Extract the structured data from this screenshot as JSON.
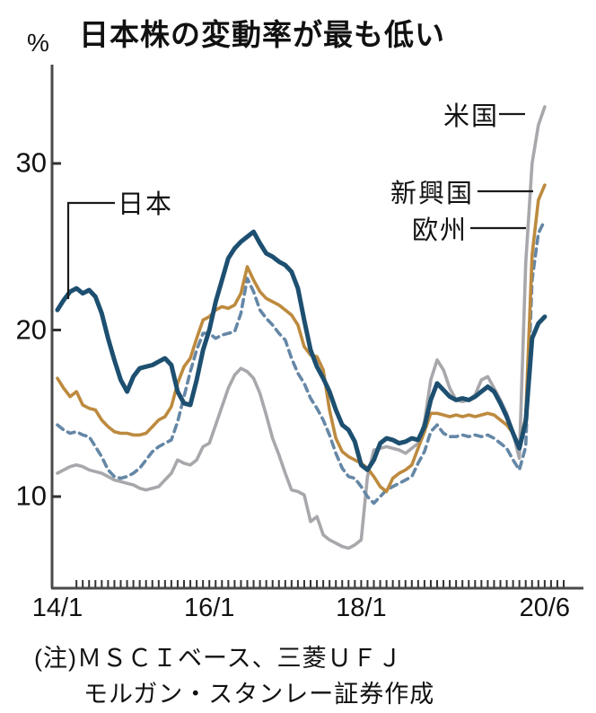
{
  "title": "日本株の変動率が最も低い",
  "y_axis": {
    "unit": "%",
    "tick_labels": [
      "10",
      "20",
      "30"
    ]
  },
  "x_axis": {
    "tick_labels": [
      "14/1",
      "16/1",
      "18/1",
      "20/6"
    ]
  },
  "series_labels": {
    "japan": "日本",
    "us": "米国",
    "em": "新興国",
    "europe": "欧州"
  },
  "note": {
    "line1": "(注)ＭＳＣＩベース、三菱ＵＦＪ",
    "line2": "モルガン・スタンレー証券作成"
  },
  "colors": {
    "japan": "#1d4f70",
    "us": "#a8a8ac",
    "em": "#bd8a3e",
    "europe": "#6587a6",
    "axis": "#4a4a4a",
    "tick": "#333333",
    "annotation_line": "#1a1a1a",
    "text": "#111111",
    "background": "#ffffff"
  },
  "chart_data": {
    "type": "line",
    "title": "日本株の変動率が最も低い",
    "ylabel": "%",
    "ylim": [
      4.5,
      35.9
    ],
    "y_ticks": [
      10,
      20,
      30
    ],
    "x_frequency": "monthly",
    "x_start": "2014-01",
    "x_end": "2020-06",
    "x_tick_labels": [
      "14/1",
      "16/1",
      "18/1",
      "20/6"
    ],
    "x_tick_months": [
      0,
      24,
      48,
      77
    ],
    "grid": false,
    "legend": "inline-annotations",
    "series": [
      {
        "name": "日本",
        "color": "#1d4f70",
        "style": "solid",
        "width": 5,
        "values": [
          21.2,
          21.8,
          22.3,
          22.5,
          22.2,
          22.4,
          22.0,
          21.0,
          19.5,
          18.2,
          17.0,
          16.3,
          17.2,
          17.7,
          17.8,
          17.9,
          18.1,
          18.3,
          17.9,
          16.3,
          15.6,
          15.5,
          17.0,
          18.8,
          20.0,
          21.7,
          23.0,
          24.3,
          24.9,
          25.3,
          25.6,
          25.9,
          25.2,
          24.6,
          24.4,
          24.1,
          23.9,
          23.5,
          22.5,
          20.6,
          18.8,
          17.8,
          17.1,
          16.3,
          15.2,
          14.3,
          14.0,
          13.3,
          11.9,
          11.6,
          12.2,
          13.2,
          13.5,
          13.4,
          13.2,
          13.3,
          13.5,
          13.4,
          14.2,
          15.8,
          16.8,
          16.4,
          16.0,
          15.8,
          15.9,
          15.8,
          16.0,
          16.3,
          16.6,
          16.3,
          15.6,
          14.8,
          13.8,
          12.9,
          14.5,
          19.5,
          20.4,
          20.8
        ]
      },
      {
        "name": "米国",
        "color": "#a8a8ac",
        "style": "solid",
        "width": 3.6,
        "values": [
          11.4,
          11.6,
          11.8,
          11.9,
          11.8,
          11.6,
          11.5,
          11.4,
          11.2,
          11.0,
          10.9,
          10.8,
          10.7,
          10.5,
          10.4,
          10.5,
          10.6,
          11.0,
          11.4,
          12.2,
          12.0,
          11.9,
          12.2,
          13.0,
          13.2,
          14.3,
          15.4,
          16.5,
          17.3,
          17.7,
          17.5,
          17.1,
          16.2,
          14.9,
          13.5,
          12.5,
          11.4,
          10.4,
          10.3,
          10.1,
          8.5,
          8.8,
          7.7,
          7.4,
          7.2,
          7.0,
          6.9,
          7.1,
          7.4,
          11.2,
          12.8,
          12.9,
          13.0,
          12.9,
          12.8,
          12.6,
          12.9,
          13.2,
          14.5,
          17.0,
          18.2,
          17.6,
          16.5,
          15.8,
          15.7,
          15.8,
          16.1,
          17.0,
          17.2,
          16.5,
          15.8,
          15.0,
          13.8,
          12.3,
          24.0,
          30.0,
          32.3,
          33.4
        ]
      },
      {
        "name": "新興国",
        "color": "#bd8a3e",
        "style": "solid",
        "width": 3.6,
        "values": [
          17.1,
          16.5,
          16.0,
          16.3,
          15.5,
          15.3,
          15.2,
          14.6,
          14.2,
          13.9,
          13.8,
          13.8,
          13.7,
          13.7,
          13.8,
          14.2,
          14.6,
          14.8,
          15.4,
          16.8,
          17.8,
          18.3,
          19.5,
          20.6,
          20.8,
          21.2,
          21.4,
          21.3,
          21.5,
          22.2,
          23.8,
          23.0,
          22.3,
          21.9,
          21.7,
          21.5,
          21.2,
          20.9,
          20.3,
          19.0,
          18.5,
          18.4,
          17.6,
          15.2,
          13.5,
          12.7,
          12.4,
          12.2,
          12.0,
          11.7,
          11.2,
          10.6,
          10.3,
          11.1,
          11.4,
          11.6,
          11.9,
          12.9,
          13.9,
          15.0,
          15.0,
          14.9,
          14.8,
          14.9,
          14.8,
          14.9,
          14.8,
          14.9,
          15.0,
          14.9,
          14.6,
          14.3,
          13.8,
          13.0,
          14.8,
          24.5,
          27.8,
          28.7
        ]
      },
      {
        "name": "欧州",
        "color": "#6587a6",
        "style": "dashed",
        "width": 3.6,
        "values": [
          14.3,
          14.0,
          13.8,
          13.9,
          13.7,
          13.6,
          13.0,
          12.4,
          11.6,
          11.2,
          11.1,
          11.2,
          11.4,
          11.7,
          12.2,
          12.7,
          13.0,
          13.2,
          13.4,
          14.5,
          16.0,
          17.5,
          18.8,
          19.8,
          19.8,
          19.5,
          19.7,
          19.8,
          19.9,
          21.0,
          23.1,
          22.3,
          21.2,
          20.7,
          20.3,
          19.8,
          19.4,
          18.3,
          17.4,
          16.8,
          15.9,
          15.3,
          14.6,
          13.7,
          12.6,
          11.7,
          11.2,
          11.1,
          10.6,
          10.0,
          9.6,
          10.0,
          10.4,
          10.6,
          10.8,
          11.0,
          11.2,
          12.0,
          12.7,
          13.9,
          14.3,
          13.8,
          13.6,
          13.6,
          13.7,
          13.6,
          13.7,
          13.6,
          13.7,
          13.5,
          13.2,
          12.9,
          12.2,
          11.6,
          13.0,
          23.0,
          25.8,
          26.6
        ]
      }
    ]
  }
}
